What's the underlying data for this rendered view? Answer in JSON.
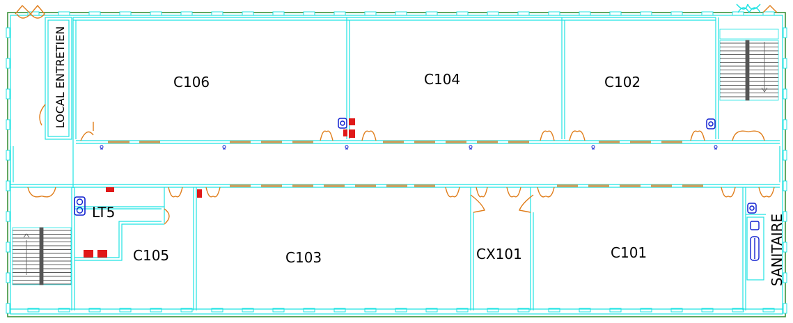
{
  "colors": {
    "wall": "#1fe3e3",
    "outline": "#2e8b2e",
    "door": "#e07d1a",
    "window": "#c8a060",
    "symbol_blue": "#1020d0",
    "symbol_red": "#e01818",
    "label": "#000000"
  },
  "rooms": {
    "c106": "C106",
    "c104": "C104",
    "c102": "C102",
    "c105": "C105",
    "c103": "C103",
    "cx101": "CX101",
    "c101": "C101",
    "lt5": "LT5",
    "local_entretien": "LOCAL ENTRETIEN",
    "sanitaire": "SANITAIRE"
  },
  "symbols": {
    "stair_direction": "↓",
    "stair_direction_up": "↑"
  }
}
